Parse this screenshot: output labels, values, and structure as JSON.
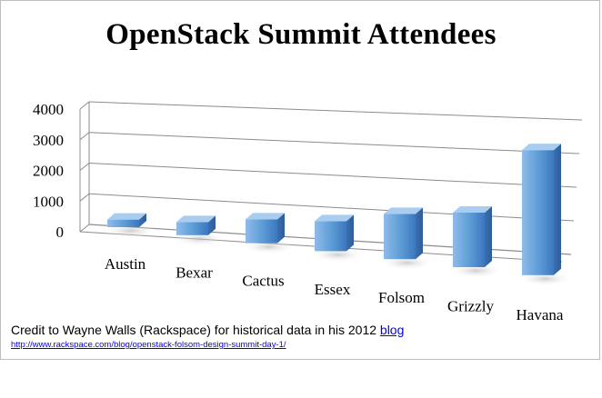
{
  "chart_data": {
    "type": "bar",
    "title": "OpenStack Summit Attendees",
    "categories": [
      "Austin",
      "Bexar",
      "Cactus",
      "Essex",
      "Folsom",
      "Grizzly",
      "Havana"
    ],
    "values": [
      70,
      250,
      600,
      800,
      1300,
      1600,
      3900
    ],
    "ylim": [
      0,
      4000
    ],
    "yticks": [
      "0",
      "1000",
      "2000",
      "3000",
      "4000"
    ],
    "grid": true,
    "style": "3d-column",
    "colors": {
      "bar_front": "#5b9bd5",
      "bar_side": "#3f78b8",
      "bar_top": "#a9cdf0",
      "grid": "#8c8c8c"
    }
  },
  "footer": {
    "credit_text": "Credit to Wayne Walls (Rackspace) for historical data in his 2012 ",
    "credit_link": "blog",
    "url": "http://www.rackspace.com/blog/openstack-folsom-design-summit-day-1/"
  }
}
